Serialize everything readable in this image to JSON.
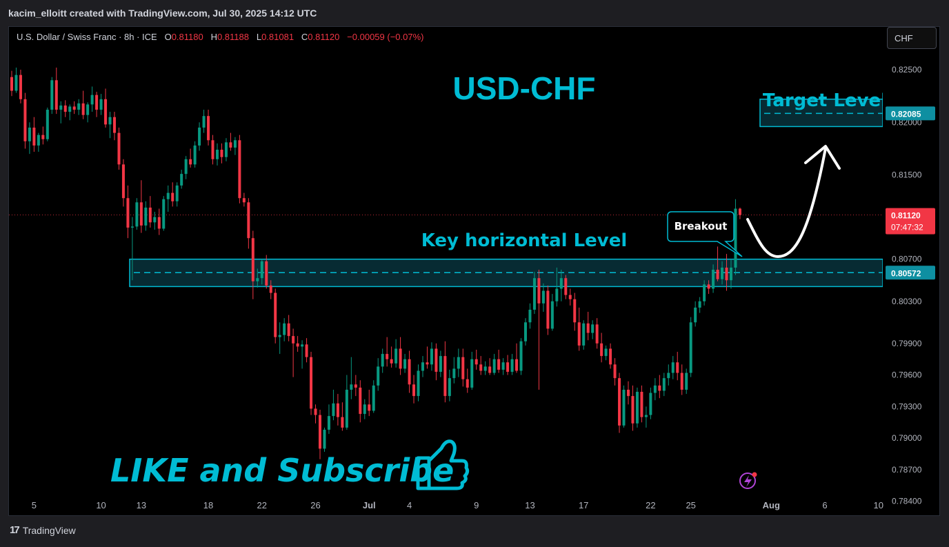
{
  "header": {
    "attribution": "kacim_elloitt created with TradingView.com, Jul 30, 2025 14:12 UTC"
  },
  "symbol": {
    "name": "U.S. Dollar / Swiss Franc · 8h · ICE",
    "o_label": "O",
    "o_value": "0.81180",
    "h_label": "H",
    "h_value": "0.81188",
    "l_label": "L",
    "l_value": "0.81081",
    "c_label": "C",
    "c_value": "0.81120",
    "change": "−0.00059 (−0.07%)"
  },
  "currency_button": "CHF",
  "footer": {
    "brand": "TradingView"
  },
  "colors": {
    "up": "#089981",
    "down": "#f23645",
    "accent": "#00bcd4",
    "zone_fill": "#0a3a44",
    "background": "#000000"
  },
  "chart_data": {
    "type": "candlestick",
    "title": "USD-CHF",
    "ylim": [
      0.783,
      0.829
    ],
    "y_ticks": [
      0.784,
      0.787,
      0.79,
      0.793,
      0.796,
      0.799,
      0.803,
      0.807,
      0.815,
      0.82,
      0.825
    ],
    "y_tick_labels": [
      "0.78400",
      "0.78700",
      "0.79000",
      "0.79300",
      "0.79600",
      "0.79900",
      "0.80300",
      "0.80700",
      "0.81500",
      "0.82000",
      "0.82500"
    ],
    "x_ticks": [
      {
        "label": "5",
        "index": 5
      },
      {
        "label": "10",
        "index": 20
      },
      {
        "label": "13",
        "index": 29
      },
      {
        "label": "18",
        "index": 44
      },
      {
        "label": "22",
        "index": 56
      },
      {
        "label": "26",
        "index": 68
      },
      {
        "label": "Jul",
        "index": 80,
        "bold": true
      },
      {
        "label": "4",
        "index": 89
      },
      {
        "label": "9",
        "index": 104
      },
      {
        "label": "13",
        "index": 116
      },
      {
        "label": "17",
        "index": 128
      },
      {
        "label": "22",
        "index": 143
      },
      {
        "label": "25",
        "index": 152
      },
      {
        "label": "Aug",
        "index": 170,
        "bold": true
      },
      {
        "label": "6",
        "index": 182
      },
      {
        "label": "10",
        "index": 194
      }
    ],
    "index_range": [
      0,
      194.5
    ],
    "last_price": {
      "value": 0.8112,
      "label": "0.81120",
      "countdown": "07:47:32"
    },
    "key_level": {
      "value": 0.80572,
      "label": "0.80572",
      "band": [
        0.8044,
        0.807
      ],
      "caption": "Key horizontal Level"
    },
    "target_level": {
      "value": 0.82085,
      "label": "0.82085",
      "band": [
        0.8196,
        0.8222
      ],
      "caption": "Target Level"
    },
    "breakout_label": "Breakout",
    "cta_text": "LIKE and Subscribe",
    "candles": [
      {
        "o": 0.8243,
        "h": 0.8249,
        "l": 0.8225,
        "c": 0.823
      },
      {
        "o": 0.823,
        "h": 0.8252,
        "l": 0.8228,
        "c": 0.8245
      },
      {
        "o": 0.8245,
        "h": 0.825,
        "l": 0.8218,
        "c": 0.8222
      },
      {
        "o": 0.8222,
        "h": 0.8228,
        "l": 0.8175,
        "c": 0.8182
      },
      {
        "o": 0.8182,
        "h": 0.82,
        "l": 0.817,
        "c": 0.8195
      },
      {
        "o": 0.8195,
        "h": 0.8205,
        "l": 0.8172,
        "c": 0.8178
      },
      {
        "o": 0.8178,
        "h": 0.819,
        "l": 0.8172,
        "c": 0.8188
      },
      {
        "o": 0.8188,
        "h": 0.8196,
        "l": 0.8179,
        "c": 0.8184
      },
      {
        "o": 0.8184,
        "h": 0.8214,
        "l": 0.8182,
        "c": 0.8212
      },
      {
        "o": 0.8212,
        "h": 0.8243,
        "l": 0.8208,
        "c": 0.824
      },
      {
        "o": 0.824,
        "h": 0.8252,
        "l": 0.8208,
        "c": 0.8212
      },
      {
        "o": 0.8212,
        "h": 0.822,
        "l": 0.8199,
        "c": 0.8216
      },
      {
        "o": 0.8216,
        "h": 0.8221,
        "l": 0.8205,
        "c": 0.821
      },
      {
        "o": 0.821,
        "h": 0.8217,
        "l": 0.8202,
        "c": 0.8215
      },
      {
        "o": 0.8215,
        "h": 0.822,
        "l": 0.8208,
        "c": 0.8212
      },
      {
        "o": 0.8212,
        "h": 0.8222,
        "l": 0.8207,
        "c": 0.8218
      },
      {
        "o": 0.8218,
        "h": 0.823,
        "l": 0.8203,
        "c": 0.8207
      },
      {
        "o": 0.8207,
        "h": 0.8219,
        "l": 0.82,
        "c": 0.8217
      },
      {
        "o": 0.8217,
        "h": 0.8234,
        "l": 0.821,
        "c": 0.8226
      },
      {
        "o": 0.8226,
        "h": 0.8229,
        "l": 0.8205,
        "c": 0.8212
      },
      {
        "o": 0.8212,
        "h": 0.8227,
        "l": 0.8207,
        "c": 0.8222
      },
      {
        "o": 0.8222,
        "h": 0.8232,
        "l": 0.8195,
        "c": 0.8198
      },
      {
        "o": 0.8198,
        "h": 0.821,
        "l": 0.8185,
        "c": 0.8205
      },
      {
        "o": 0.8205,
        "h": 0.821,
        "l": 0.8183,
        "c": 0.819
      },
      {
        "o": 0.819,
        "h": 0.8195,
        "l": 0.8155,
        "c": 0.816
      },
      {
        "o": 0.816,
        "h": 0.8165,
        "l": 0.812,
        "c": 0.8128
      },
      {
        "o": 0.8128,
        "h": 0.814,
        "l": 0.809,
        "c": 0.81
      },
      {
        "o": 0.81,
        "h": 0.811,
        "l": 0.805,
        "c": 0.8101
      },
      {
        "o": 0.8101,
        "h": 0.8128,
        "l": 0.8098,
        "c": 0.8124
      },
      {
        "o": 0.8124,
        "h": 0.8145,
        "l": 0.8095,
        "c": 0.8102
      },
      {
        "o": 0.8102,
        "h": 0.8125,
        "l": 0.8097,
        "c": 0.8119
      },
      {
        "o": 0.8119,
        "h": 0.813,
        "l": 0.81,
        "c": 0.8105
      },
      {
        "o": 0.8105,
        "h": 0.8115,
        "l": 0.8098,
        "c": 0.811
      },
      {
        "o": 0.811,
        "h": 0.8118,
        "l": 0.8093,
        "c": 0.8099
      },
      {
        "o": 0.8099,
        "h": 0.813,
        "l": 0.8097,
        "c": 0.8127
      },
      {
        "o": 0.8127,
        "h": 0.814,
        "l": 0.8115,
        "c": 0.8133
      },
      {
        "o": 0.8133,
        "h": 0.8143,
        "l": 0.812,
        "c": 0.8125
      },
      {
        "o": 0.8125,
        "h": 0.8143,
        "l": 0.812,
        "c": 0.814
      },
      {
        "o": 0.814,
        "h": 0.8155,
        "l": 0.8137,
        "c": 0.8151
      },
      {
        "o": 0.8151,
        "h": 0.8168,
        "l": 0.8146,
        "c": 0.8165
      },
      {
        "o": 0.8165,
        "h": 0.8175,
        "l": 0.8157,
        "c": 0.816
      },
      {
        "o": 0.816,
        "h": 0.8182,
        "l": 0.8157,
        "c": 0.8178
      },
      {
        "o": 0.8178,
        "h": 0.82,
        "l": 0.8173,
        "c": 0.8195
      },
      {
        "o": 0.8195,
        "h": 0.8212,
        "l": 0.819,
        "c": 0.8206
      },
      {
        "o": 0.8206,
        "h": 0.8212,
        "l": 0.8178,
        "c": 0.8183
      },
      {
        "o": 0.8183,
        "h": 0.8188,
        "l": 0.816,
        "c": 0.8165
      },
      {
        "o": 0.8165,
        "h": 0.818,
        "l": 0.8159,
        "c": 0.8174
      },
      {
        "o": 0.8174,
        "h": 0.818,
        "l": 0.8161,
        "c": 0.8167
      },
      {
        "o": 0.8167,
        "h": 0.8185,
        "l": 0.8163,
        "c": 0.8181
      },
      {
        "o": 0.8181,
        "h": 0.819,
        "l": 0.8173,
        "c": 0.8176
      },
      {
        "o": 0.8176,
        "h": 0.8186,
        "l": 0.8169,
        "c": 0.8183
      },
      {
        "o": 0.8183,
        "h": 0.8188,
        "l": 0.8123,
        "c": 0.8128
      },
      {
        "o": 0.8128,
        "h": 0.8133,
        "l": 0.812,
        "c": 0.8124
      },
      {
        "o": 0.8124,
        "h": 0.8128,
        "l": 0.808,
        "c": 0.809
      },
      {
        "o": 0.809,
        "h": 0.8097,
        "l": 0.8032,
        "c": 0.8049
      },
      {
        "o": 0.8049,
        "h": 0.8061,
        "l": 0.8043,
        "c": 0.8052
      },
      {
        "o": 0.8052,
        "h": 0.807,
        "l": 0.8046,
        "c": 0.8068
      },
      {
        "o": 0.8068,
        "h": 0.8074,
        "l": 0.8042,
        "c": 0.8045
      },
      {
        "o": 0.8045,
        "h": 0.805,
        "l": 0.8032,
        "c": 0.8038
      },
      {
        "o": 0.8038,
        "h": 0.8042,
        "l": 0.799,
        "c": 0.7996
      },
      {
        "o": 0.7996,
        "h": 0.801,
        "l": 0.798,
        "c": 0.7998
      },
      {
        "o": 0.7998,
        "h": 0.8014,
        "l": 0.7992,
        "c": 0.8009
      },
      {
        "o": 0.8009,
        "h": 0.8017,
        "l": 0.7992,
        "c": 0.7997
      },
      {
        "o": 0.7997,
        "h": 0.8004,
        "l": 0.7958,
        "c": 0.799
      },
      {
        "o": 0.799,
        "h": 0.7997,
        "l": 0.7982,
        "c": 0.7987
      },
      {
        "o": 0.7987,
        "h": 0.7993,
        "l": 0.7966,
        "c": 0.7989
      },
      {
        "o": 0.7989,
        "h": 0.7995,
        "l": 0.7972,
        "c": 0.7977
      },
      {
        "o": 0.7977,
        "h": 0.7982,
        "l": 0.7922,
        "c": 0.7928
      },
      {
        "o": 0.7928,
        "h": 0.7932,
        "l": 0.7914,
        "c": 0.7922
      },
      {
        "o": 0.7922,
        "h": 0.7927,
        "l": 0.788,
        "c": 0.789
      },
      {
        "o": 0.789,
        "h": 0.791,
        "l": 0.7887,
        "c": 0.7908
      },
      {
        "o": 0.7908,
        "h": 0.7932,
        "l": 0.7904,
        "c": 0.7921
      },
      {
        "o": 0.7921,
        "h": 0.7946,
        "l": 0.7917,
        "c": 0.7933
      },
      {
        "o": 0.7933,
        "h": 0.7942,
        "l": 0.7912,
        "c": 0.792
      },
      {
        "o": 0.792,
        "h": 0.7934,
        "l": 0.7907,
        "c": 0.791
      },
      {
        "o": 0.791,
        "h": 0.796,
        "l": 0.7908,
        "c": 0.7946
      },
      {
        "o": 0.7946,
        "h": 0.7977,
        "l": 0.7937,
        "c": 0.7951
      },
      {
        "o": 0.7951,
        "h": 0.796,
        "l": 0.794,
        "c": 0.7948
      },
      {
        "o": 0.7948,
        "h": 0.7955,
        "l": 0.7915,
        "c": 0.7923
      },
      {
        "o": 0.7923,
        "h": 0.7937,
        "l": 0.7918,
        "c": 0.7932
      },
      {
        "o": 0.7932,
        "h": 0.7946,
        "l": 0.7921,
        "c": 0.7926
      },
      {
        "o": 0.7926,
        "h": 0.7955,
        "l": 0.7924,
        "c": 0.795
      },
      {
        "o": 0.795,
        "h": 0.7976,
        "l": 0.7945,
        "c": 0.7968
      },
      {
        "o": 0.7968,
        "h": 0.7985,
        "l": 0.7962,
        "c": 0.798
      },
      {
        "o": 0.798,
        "h": 0.7996,
        "l": 0.7968,
        "c": 0.7975
      },
      {
        "o": 0.7975,
        "h": 0.7987,
        "l": 0.7967,
        "c": 0.7971
      },
      {
        "o": 0.7971,
        "h": 0.7994,
        "l": 0.7967,
        "c": 0.7985
      },
      {
        "o": 0.7985,
        "h": 0.7996,
        "l": 0.796,
        "c": 0.7966
      },
      {
        "o": 0.7966,
        "h": 0.798,
        "l": 0.7962,
        "c": 0.7975
      },
      {
        "o": 0.7975,
        "h": 0.7983,
        "l": 0.7943,
        "c": 0.7951
      },
      {
        "o": 0.7951,
        "h": 0.796,
        "l": 0.7933,
        "c": 0.794
      },
      {
        "o": 0.794,
        "h": 0.797,
        "l": 0.7935,
        "c": 0.7964
      },
      {
        "o": 0.7964,
        "h": 0.7978,
        "l": 0.7958,
        "c": 0.7972
      },
      {
        "o": 0.7972,
        "h": 0.7987,
        "l": 0.7966,
        "c": 0.797
      },
      {
        "o": 0.797,
        "h": 0.7991,
        "l": 0.7964,
        "c": 0.7985
      },
      {
        "o": 0.7985,
        "h": 0.799,
        "l": 0.7955,
        "c": 0.7963
      },
      {
        "o": 0.7963,
        "h": 0.7983,
        "l": 0.7958,
        "c": 0.7978
      },
      {
        "o": 0.7978,
        "h": 0.7992,
        "l": 0.7934,
        "c": 0.794
      },
      {
        "o": 0.794,
        "h": 0.7965,
        "l": 0.7935,
        "c": 0.7957
      },
      {
        "o": 0.7957,
        "h": 0.7977,
        "l": 0.7952,
        "c": 0.7966
      },
      {
        "o": 0.7966,
        "h": 0.7985,
        "l": 0.7958,
        "c": 0.7977
      },
      {
        "o": 0.7977,
        "h": 0.7985,
        "l": 0.7949,
        "c": 0.7956
      },
      {
        "o": 0.7956,
        "h": 0.7966,
        "l": 0.7943,
        "c": 0.7948
      },
      {
        "o": 0.7948,
        "h": 0.7982,
        "l": 0.7946,
        "c": 0.7975
      },
      {
        "o": 0.7975,
        "h": 0.7984,
        "l": 0.7965,
        "c": 0.797
      },
      {
        "o": 0.797,
        "h": 0.7978,
        "l": 0.796,
        "c": 0.7964
      },
      {
        "o": 0.7964,
        "h": 0.7973,
        "l": 0.796,
        "c": 0.7968
      },
      {
        "o": 0.7968,
        "h": 0.7976,
        "l": 0.796,
        "c": 0.7962
      },
      {
        "o": 0.7962,
        "h": 0.798,
        "l": 0.796,
        "c": 0.7975
      },
      {
        "o": 0.7975,
        "h": 0.7984,
        "l": 0.7962,
        "c": 0.7965
      },
      {
        "o": 0.7965,
        "h": 0.7976,
        "l": 0.796,
        "c": 0.7972
      },
      {
        "o": 0.7972,
        "h": 0.7979,
        "l": 0.796,
        "c": 0.7963
      },
      {
        "o": 0.7963,
        "h": 0.798,
        "l": 0.796,
        "c": 0.7975
      },
      {
        "o": 0.7975,
        "h": 0.799,
        "l": 0.7962,
        "c": 0.7964
      },
      {
        "o": 0.7964,
        "h": 0.7995,
        "l": 0.796,
        "c": 0.7992
      },
      {
        "o": 0.7992,
        "h": 0.8014,
        "l": 0.7988,
        "c": 0.801
      },
      {
        "o": 0.801,
        "h": 0.8028,
        "l": 0.8004,
        "c": 0.8022
      },
      {
        "o": 0.8022,
        "h": 0.8058,
        "l": 0.8018,
        "c": 0.8052
      },
      {
        "o": 0.8052,
        "h": 0.806,
        "l": 0.7946,
        "c": 0.8028
      },
      {
        "o": 0.8028,
        "h": 0.8047,
        "l": 0.802,
        "c": 0.804
      },
      {
        "o": 0.804,
        "h": 0.8045,
        "l": 0.7998,
        "c": 0.8004
      },
      {
        "o": 0.8004,
        "h": 0.8037,
        "l": 0.8002,
        "c": 0.803
      },
      {
        "o": 0.803,
        "h": 0.8062,
        "l": 0.8025,
        "c": 0.8042
      },
      {
        "o": 0.8042,
        "h": 0.806,
        "l": 0.803,
        "c": 0.8052
      },
      {
        "o": 0.8052,
        "h": 0.8055,
        "l": 0.8032,
        "c": 0.8036
      },
      {
        "o": 0.8036,
        "h": 0.8042,
        "l": 0.8026,
        "c": 0.8032
      },
      {
        "o": 0.8032,
        "h": 0.8038,
        "l": 0.8002,
        "c": 0.801
      },
      {
        "o": 0.801,
        "h": 0.8024,
        "l": 0.7983,
        "c": 0.7988
      },
      {
        "o": 0.7988,
        "h": 0.8012,
        "l": 0.7984,
        "c": 0.8009
      },
      {
        "o": 0.8009,
        "h": 0.802,
        "l": 0.7993,
        "c": 0.8
      },
      {
        "o": 0.8,
        "h": 0.8012,
        "l": 0.7994,
        "c": 0.8008
      },
      {
        "o": 0.8008,
        "h": 0.8014,
        "l": 0.7985,
        "c": 0.799
      },
      {
        "o": 0.799,
        "h": 0.8,
        "l": 0.7972,
        "c": 0.7978
      },
      {
        "o": 0.7978,
        "h": 0.7988,
        "l": 0.7974,
        "c": 0.7985
      },
      {
        "o": 0.7985,
        "h": 0.799,
        "l": 0.7966,
        "c": 0.797
      },
      {
        "o": 0.797,
        "h": 0.7976,
        "l": 0.795,
        "c": 0.7957
      },
      {
        "o": 0.7957,
        "h": 0.7962,
        "l": 0.7905,
        "c": 0.7912
      },
      {
        "o": 0.7912,
        "h": 0.795,
        "l": 0.791,
        "c": 0.7946
      },
      {
        "o": 0.7946,
        "h": 0.7954,
        "l": 0.7932,
        "c": 0.794
      },
      {
        "o": 0.794,
        "h": 0.795,
        "l": 0.7907,
        "c": 0.7914
      },
      {
        "o": 0.7914,
        "h": 0.7948,
        "l": 0.791,
        "c": 0.7944
      },
      {
        "o": 0.7944,
        "h": 0.795,
        "l": 0.7915,
        "c": 0.792
      },
      {
        "o": 0.792,
        "h": 0.793,
        "l": 0.791,
        "c": 0.7922
      },
      {
        "o": 0.7922,
        "h": 0.7948,
        "l": 0.7918,
        "c": 0.7943
      },
      {
        "o": 0.7943,
        "h": 0.7957,
        "l": 0.7936,
        "c": 0.795
      },
      {
        "o": 0.795,
        "h": 0.796,
        "l": 0.7938,
        "c": 0.7945
      },
      {
        "o": 0.7945,
        "h": 0.7962,
        "l": 0.794,
        "c": 0.7957
      },
      {
        "o": 0.7957,
        "h": 0.797,
        "l": 0.795,
        "c": 0.7962
      },
      {
        "o": 0.7962,
        "h": 0.7978,
        "l": 0.7956,
        "c": 0.7972
      },
      {
        "o": 0.7972,
        "h": 0.7982,
        "l": 0.7955,
        "c": 0.7962
      },
      {
        "o": 0.7962,
        "h": 0.797,
        "l": 0.7941,
        "c": 0.7946
      },
      {
        "o": 0.7946,
        "h": 0.7966,
        "l": 0.7942,
        "c": 0.7962
      },
      {
        "o": 0.7962,
        "h": 0.8015,
        "l": 0.7958,
        "c": 0.801
      },
      {
        "o": 0.801,
        "h": 0.803,
        "l": 0.8006,
        "c": 0.8024
      },
      {
        "o": 0.8024,
        "h": 0.8034,
        "l": 0.8019,
        "c": 0.803
      },
      {
        "o": 0.803,
        "h": 0.805,
        "l": 0.8026,
        "c": 0.8046
      },
      {
        "o": 0.8046,
        "h": 0.805,
        "l": 0.8037,
        "c": 0.8042
      },
      {
        "o": 0.8042,
        "h": 0.8065,
        "l": 0.8038,
        "c": 0.806
      },
      {
        "o": 0.806,
        "h": 0.8082,
        "l": 0.8049,
        "c": 0.8051
      },
      {
        "o": 0.8051,
        "h": 0.8068,
        "l": 0.8046,
        "c": 0.8062
      },
      {
        "o": 0.8062,
        "h": 0.8075,
        "l": 0.804,
        "c": 0.805
      },
      {
        "o": 0.805,
        "h": 0.807,
        "l": 0.8042,
        "c": 0.8062
      },
      {
        "o": 0.8062,
        "h": 0.8127,
        "l": 0.8055,
        "c": 0.8118
      },
      {
        "o": 0.8118,
        "h": 0.8119,
        "l": 0.8108,
        "c": 0.8112
      }
    ]
  }
}
